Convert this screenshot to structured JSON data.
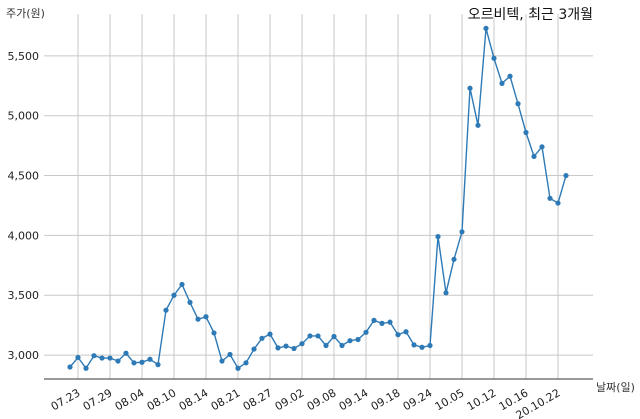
{
  "chart_data": {
    "type": "line",
    "title": "오르비텍, 최근 3개월",
    "ylabel": "주가(원)",
    "xlabel": "날짜(일)",
    "ylim": [
      2800,
      5850
    ],
    "yticks": [
      3000,
      3500,
      4000,
      4500,
      5000,
      5500
    ],
    "ytick_labels": [
      "3,000",
      "3,500",
      "4,000",
      "4,500",
      "5,000",
      "5,500"
    ],
    "xtick_labels": [
      "07.23",
      "07.29",
      "08.04",
      "08.10",
      "08.14",
      "08.21",
      "08.27",
      "09.02",
      "09.08",
      "09.14",
      "09.18",
      "09.24",
      "10.05",
      "10.12",
      "10.16",
      "20.10.22"
    ],
    "xtick_index": [
      1,
      5,
      9,
      13,
      17,
      21,
      25,
      29,
      33,
      37,
      41,
      45,
      49,
      53,
      57,
      61
    ],
    "grid": true,
    "color": "#2e7ab6",
    "series": [
      {
        "values": [
          2900,
          2980,
          2890,
          2995,
          2975,
          2975,
          2950,
          3015,
          2935,
          2940,
          2965,
          2920,
          3375,
          3500,
          3590,
          3440,
          3300,
          3320,
          3185,
          2950,
          3005,
          2890,
          2935,
          3050,
          3140,
          3175,
          3060,
          3075,
          3055,
          3095,
          3160,
          3160,
          3080,
          3155,
          3080,
          3120,
          3130,
          3190,
          3290,
          3265,
          3275,
          3170,
          3195,
          3085,
          3065,
          3080,
          3990,
          3520,
          3800,
          4030,
          5230,
          4920,
          5730,
          5480,
          5270,
          5330,
          5100,
          4860,
          4660,
          4740,
          4310,
          4270,
          4500
        ]
      }
    ]
  }
}
